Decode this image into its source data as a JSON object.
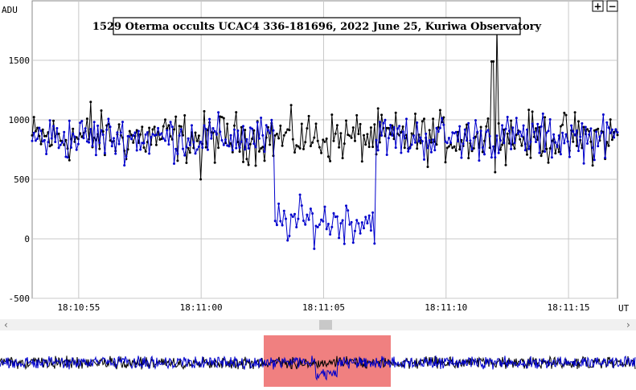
{
  "chart_data": {
    "type": "line",
    "title": "1529 Oterma occults UCAC4 336-181696, 2022 June 25, Kuriwa Observatory",
    "ylabel": "ADU",
    "xlabel": "UT",
    "ylim": [
      -500,
      2000
    ],
    "yticks": [
      -500,
      0,
      500,
      1000,
      1500
    ],
    "x_tick_labels": [
      "18:10:55",
      "18:11:00",
      "18:11:05",
      "18:11:10",
      "18:11:15"
    ],
    "x_tick_seconds": [
      55,
      60,
      65,
      70,
      75
    ],
    "x_range_seconds": [
      53.1,
      77.0
    ],
    "grid": true,
    "series": [
      {
        "color": "#000000",
        "baseline": 850,
        "noise": 170,
        "features": [
          {
            "t": 55.5,
            "value": 1150
          },
          {
            "t": 60.0,
            "value": 500
          },
          {
            "t": 72.1,
            "value": 1790
          },
          {
            "t": 71.9,
            "value": 1490
          }
        ]
      },
      {
        "color": "#0000cc",
        "baseline": 850,
        "noise": 150,
        "segments": [
          {
            "t_start": 53.1,
            "t_end": 63.0,
            "level": 850
          },
          {
            "t_start": 63.0,
            "t_end": 67.1,
            "level": 150
          },
          {
            "t_start": 67.1,
            "t_end": 77.0,
            "level": 850
          }
        ]
      }
    ]
  },
  "zoom_controls": {
    "plus": "+",
    "minus": "−"
  },
  "scrollbar": {
    "left_arrow": "‹",
    "right_arrow": "›"
  },
  "overview": {
    "highlight_color": "#f08080"
  }
}
